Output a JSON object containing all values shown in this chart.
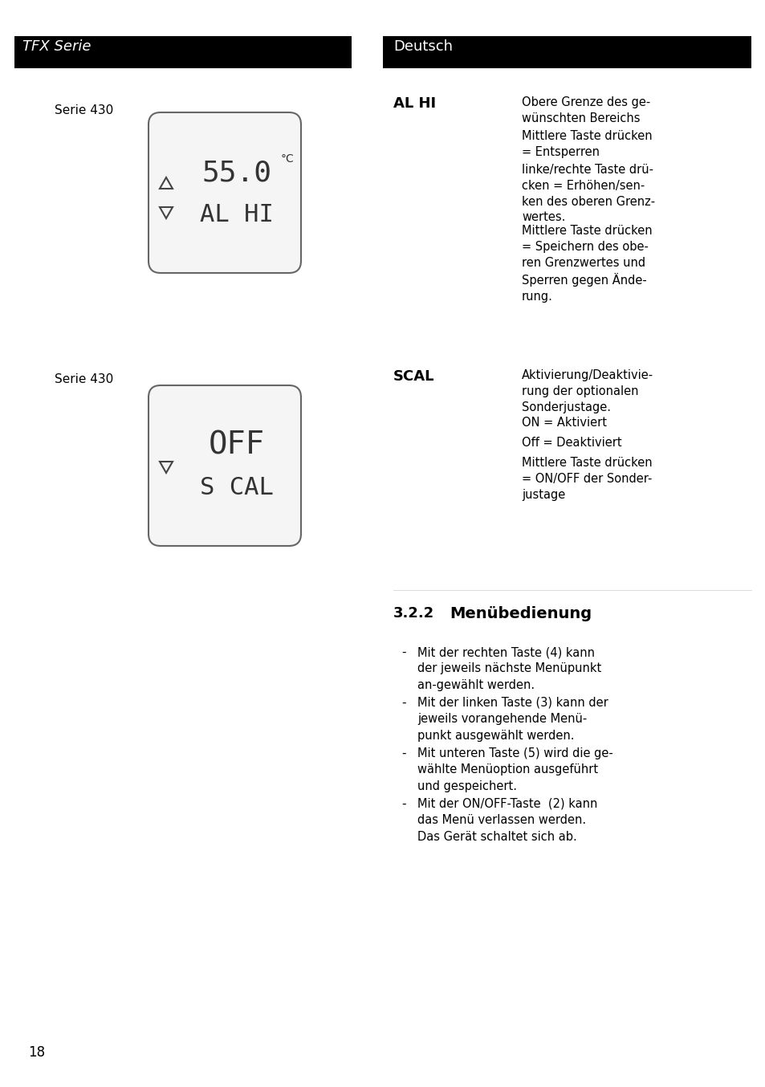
{
  "header_left_text": "TFX Serie",
  "header_right_text": "Deutsch",
  "header_bg": "#000000",
  "header_text_color": "#ffffff",
  "page_bg": "#ffffff",
  "page_number": "18",
  "body_text_color": "#000000",
  "section1_label": "Serie 430",
  "section1_keyword": "AL HI",
  "section1_desc": [
    "Obere Grenze des ge-\nwünschten Bereichs",
    "Mittlere Taste drücken\n= Entsperren",
    "linke/rechte Taste drü-\ncken = Erhöhen/sen-\nken des oberen Grenz-\nwertes.",
    "Mittlere Taste drücken\n= Speichern des obe-\nren Grenzwertes und\nSperren gegen Ände-\nrung."
  ],
  "section2_label": "Serie 430",
  "section2_keyword": "SCAL",
  "section2_desc": [
    "Aktivierung/Deaktivie-\nrung der optionalen\nSonderjustage.",
    "ON = Aktiviert",
    "Off = Deaktiviert",
    "Mittlere Taste drücken\n= ON/OFF der Sonder-\njustage"
  ],
  "section3_heading_num": "3.2.2",
  "section3_heading": "Menübedienung",
  "section3_bullets": [
    "Mit der rechten Taste (4) kann\nder jeweils nächste Menüpunkt\nan-gewählt werden.",
    "Mit der linken Taste (3) kann der\njeweils vorangehende Menü-\npunkt ausgewählt werden.",
    "Mit unteren Taste (5) wird die ge-\nwählte Menüoption ausgeführt\nund gespeichert.",
    "Mit der ON/OFF-Taste  (2) kann\ndas Menü verlassen werden.\nDas Gerät schaltet sich ab."
  ]
}
